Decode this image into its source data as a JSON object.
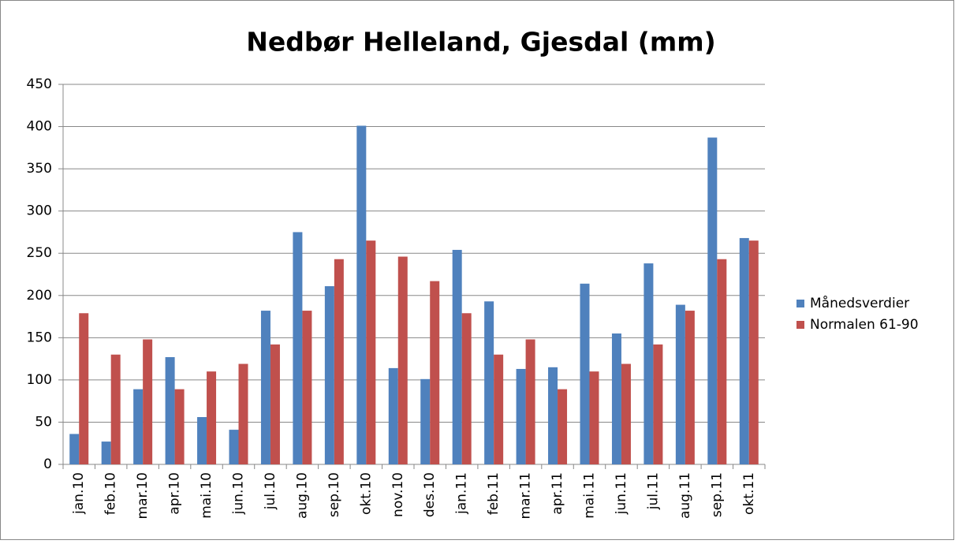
{
  "chart_data": {
    "type": "bar",
    "title": "Nedbør Helleland, Gjesdal (mm)",
    "categories": [
      "jan.10",
      "feb.10",
      "mar.10",
      "apr.10",
      "mai.10",
      "jun.10",
      "jul.10",
      "aug.10",
      "sep.10",
      "okt.10",
      "nov.10",
      "des.10",
      "jan.11",
      "feb.11",
      "mar.11",
      "apr.11",
      "mai.11",
      "jun.11",
      "jul.11",
      "aug.11",
      "sep.11",
      "okt.11"
    ],
    "series": [
      {
        "name": "Månedsverdier",
        "color": "#4f81bd",
        "values": [
          36,
          27,
          89,
          127,
          56,
          41,
          182,
          275,
          211,
          401,
          114,
          101,
          254,
          193,
          113,
          115,
          214,
          155,
          238,
          189,
          387,
          268
        ]
      },
      {
        "name": "Normalen 61-90",
        "color": "#c0504d",
        "values": [
          179,
          130,
          148,
          89,
          110,
          119,
          142,
          182,
          243,
          265,
          246,
          217,
          179,
          130,
          148,
          89,
          110,
          119,
          142,
          182,
          243,
          265
        ]
      }
    ],
    "ylim": [
      0,
      450
    ],
    "yticks": [
      0,
      50,
      100,
      150,
      200,
      250,
      300,
      350,
      400,
      450
    ],
    "grid": true,
    "legend": "right"
  }
}
